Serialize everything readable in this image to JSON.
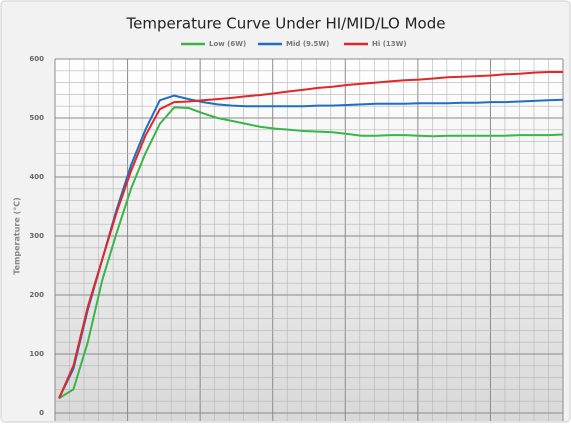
{
  "chart_data": {
    "type": "line",
    "title": "Temperature Curve Under HI/MID/LO Mode",
    "y_label": "Temperature (°C)",
    "ylim": [
      0,
      600
    ],
    "yticks": [
      0,
      100,
      200,
      300,
      400,
      500,
      600
    ],
    "grid": true,
    "legend": "top",
    "series": [
      {
        "name": "Low (6W)",
        "color": "#3bb44a",
        "values": [
          25,
          40,
          120,
          225,
          305,
          380,
          440,
          490,
          518,
          517,
          508,
          500,
          495,
          490,
          485,
          482,
          480,
          478,
          477,
          476,
          473,
          470,
          470,
          471,
          471,
          470,
          469,
          470,
          470,
          470,
          470,
          470,
          471,
          471,
          471,
          472
        ]
      },
      {
        "name": "Mid (9.5W)",
        "color": "#1f6fc0",
        "values": [
          25,
          75,
          175,
          260,
          345,
          420,
          480,
          530,
          538,
          532,
          527,
          523,
          521,
          520,
          520,
          520,
          520,
          520,
          521,
          521,
          522,
          523,
          524,
          524,
          524,
          525,
          525,
          525,
          526,
          526,
          527,
          527,
          528,
          529,
          530,
          531
        ]
      },
      {
        "name": "Hi (13W)",
        "color": "#e02828",
        "values": [
          25,
          80,
          180,
          260,
          340,
          410,
          470,
          515,
          527,
          528,
          530,
          532,
          534,
          537,
          539,
          542,
          545,
          548,
          551,
          553,
          556,
          558,
          560,
          562,
          564,
          565,
          567,
          569,
          570,
          571,
          572,
          574,
          575,
          577,
          578,
          578
        ]
      }
    ]
  }
}
